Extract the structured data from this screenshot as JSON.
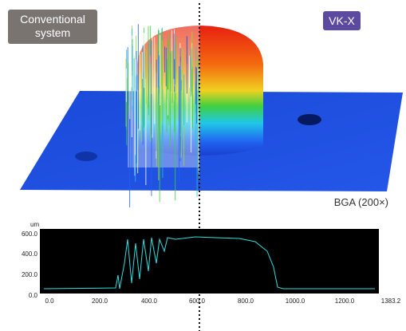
{
  "labels": {
    "left": "Conventional system",
    "right": "VK-X",
    "caption": "BGA (200×)"
  },
  "profile": {
    "unit": "um",
    "yticks": [
      "600.0",
      "400.0",
      "200.0",
      "0.0"
    ],
    "xticks": [
      "0.0",
      "200.0",
      "400.0",
      "600.0",
      "800.0",
      "1000.0",
      "1200.0",
      "1383.2"
    ]
  }
}
